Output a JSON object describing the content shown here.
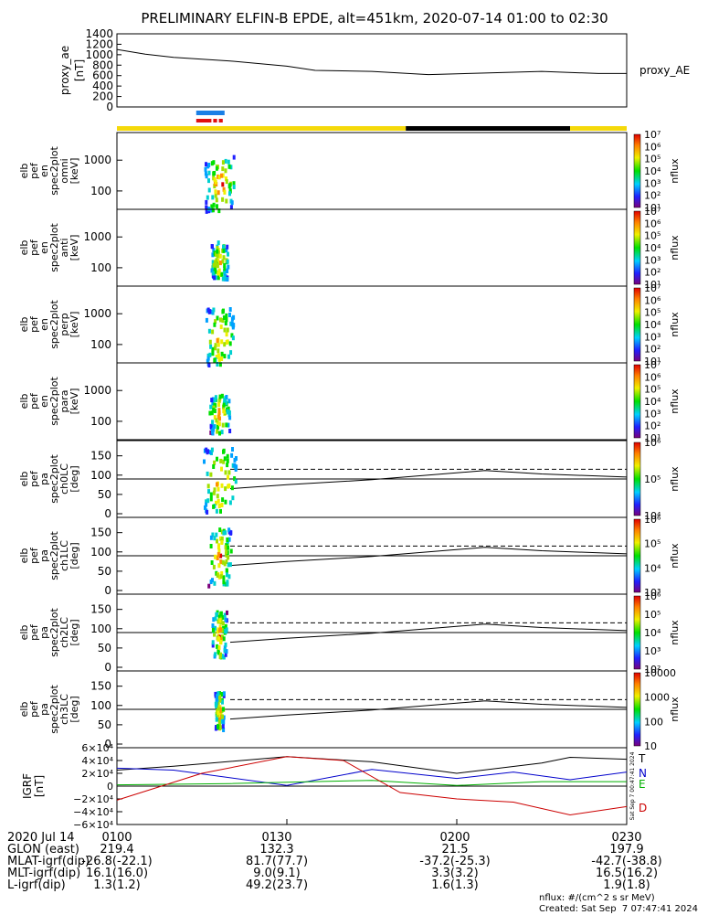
{
  "chart_data": {
    "type": "multi-panel spectrogram",
    "title": "PRELIMINARY ELFIN-B EPDE, alt=451km, 2020-07-14 01:00 to 02:30",
    "time_axis": {
      "start": "2020-07-14 01:00",
      "end": "2020-07-14 02:30",
      "ticks": [
        "0100",
        "0130",
        "0200",
        "0230"
      ]
    },
    "ae_panel": {
      "ylabel": [
        "proxy_ae",
        "[nT]"
      ],
      "yticks": [
        0,
        200,
        400,
        600,
        800,
        1000,
        1200,
        1400
      ],
      "ylim": [
        0,
        1400
      ],
      "legend": "proxy_AE",
      "series": [
        {
          "t": "01:00",
          "v": 1100
        },
        {
          "t": "01:05",
          "v": 1010
        },
        {
          "t": "01:10",
          "v": 950
        },
        {
          "t": "01:20",
          "v": 880
        },
        {
          "t": "01:30",
          "v": 780
        },
        {
          "t": "01:35",
          "v": 700
        },
        {
          "t": "01:45",
          "v": 680
        },
        {
          "t": "01:55",
          "v": 620
        },
        {
          "t": "02:05",
          "v": 650
        },
        {
          "t": "02:15",
          "v": 680
        },
        {
          "t": "02:25",
          "v": 640
        },
        {
          "t": "02:30",
          "v": 640
        }
      ]
    },
    "science_intervals": {
      "blue": [
        {
          "start": "01:14",
          "end": "01:19"
        }
      ],
      "red": [
        {
          "start": "01:14",
          "end": "01:17"
        },
        {
          "start": "01:17",
          "end": "01:18"
        },
        {
          "start": "01:18",
          "end": "01:19"
        }
      ]
    },
    "orbit_bar": [
      {
        "start": "01:00",
        "end": "01:51",
        "color": "#f5d90a"
      },
      {
        "start": "01:51",
        "end": "02:20",
        "color": "#000000"
      },
      {
        "start": "02:20",
        "end": "02:30",
        "color": "#f5d90a"
      }
    ],
    "energy_panels": [
      {
        "ylabel": [
          "elb",
          "pef",
          "en",
          "spec2plot",
          "omni",
          "[keV]"
        ],
        "yticks": [
          100,
          1000
        ],
        "cbar_ticks": [
          "10¹",
          "10²",
          "10³",
          "10⁴",
          "10⁵",
          "10⁶",
          "10⁷"
        ],
        "cbar_label": "nflux"
      },
      {
        "ylabel": [
          "elb",
          "pef",
          "en",
          "spec2plot",
          "anti",
          "[keV]"
        ],
        "yticks": [
          100,
          1000
        ],
        "cbar_ticks": [
          "10¹",
          "10²",
          "10³",
          "10⁴",
          "10⁵",
          "10⁶",
          "10⁷"
        ],
        "cbar_label": "nflux"
      },
      {
        "ylabel": [
          "elb",
          "pef",
          "en",
          "spec2plot",
          "perp",
          "[keV]"
        ],
        "yticks": [
          100,
          1000
        ],
        "cbar_ticks": [
          "10¹",
          "10²",
          "10³",
          "10⁴",
          "10⁵",
          "10⁶",
          "10⁷"
        ],
        "cbar_label": "nflux"
      },
      {
        "ylabel": [
          "elb",
          "pef",
          "en",
          "spec2plot",
          "para",
          "[keV]"
        ],
        "yticks": [
          100,
          1000
        ],
        "cbar_ticks": [
          "10¹",
          "10²",
          "10³",
          "10⁴",
          "10⁵",
          "10⁶",
          "10⁷"
        ],
        "cbar_label": "nflux"
      }
    ],
    "pitch_panels": [
      {
        "ylabel": [
          "elb",
          "pef",
          "pa",
          "spec2plot",
          "ch0LC",
          "[deg]"
        ],
        "yticks": [
          0,
          50,
          100,
          150
        ],
        "cbar_ticks": [
          "10⁴",
          "10⁵",
          "10⁶"
        ],
        "cbar_label": "nflux"
      },
      {
        "ylabel": [
          "elb",
          "pef",
          "pa",
          "spec2plot",
          "ch1LC",
          "[deg]"
        ],
        "yticks": [
          0,
          50,
          100,
          150
        ],
        "cbar_ticks": [
          "10³",
          "10⁴",
          "10⁵",
          "10⁶"
        ],
        "cbar_label": "nflux"
      },
      {
        "ylabel": [
          "elb",
          "pef",
          "pa",
          "spec2plot",
          "ch2LC",
          "[deg]"
        ],
        "yticks": [
          0,
          50,
          100,
          150
        ],
        "cbar_ticks": [
          "10²",
          "10³",
          "10⁴",
          "10⁵",
          "10⁶"
        ],
        "cbar_label": "nflux"
      },
      {
        "ylabel": [
          "elb",
          "pef",
          "pa",
          "spec2plot",
          "ch3LC",
          "[deg]"
        ],
        "yticks": [
          0,
          50,
          100,
          150
        ],
        "cbar_ticks": [
          "10",
          "100",
          "1000",
          "10000"
        ],
        "cbar_label": "nflux"
      }
    ],
    "loss_cone": [
      {
        "t": "01:20",
        "solid": 65,
        "dashed": 115
      },
      {
        "t": "01:30",
        "solid": 75,
        "dashed": 115
      },
      {
        "t": "01:45",
        "solid": 88,
        "dashed": 115
      },
      {
        "t": "02:05",
        "solid": 112,
        "dashed": 115
      },
      {
        "t": "02:15",
        "solid": 103,
        "dashed": 115
      },
      {
        "t": "02:30",
        "solid": 95,
        "dashed": 115
      }
    ],
    "igrf_panel": {
      "ylabel": [
        "IGRF",
        "[nT]"
      ],
      "yticks": [
        "6×10⁴",
        "4×10⁴",
        "2×10⁴",
        "0",
        "−2×10⁴",
        "−4×10⁴",
        "−6×10⁴"
      ],
      "ylim": [
        -60000,
        60000
      ],
      "components": [
        {
          "name": "T",
          "color": "#000000",
          "values": [
            [
              0,
              25000
            ],
            [
              10,
              31000
            ],
            [
              30,
              46000
            ],
            [
              45,
              38000
            ],
            [
              60,
              20000
            ],
            [
              75,
              36000
            ],
            [
              80,
              45000
            ],
            [
              90,
              42000
            ]
          ]
        },
        {
          "name": "N",
          "color": "#0000cc",
          "values": [
            [
              0,
              28000
            ],
            [
              10,
              25000
            ],
            [
              30,
              1000
            ],
            [
              45,
              26000
            ],
            [
              60,
              12000
            ],
            [
              70,
              22000
            ],
            [
              80,
              10000
            ],
            [
              90,
              22000
            ]
          ]
        },
        {
          "name": "E",
          "color": "#00b000",
          "values": [
            [
              0,
              2000
            ],
            [
              20,
              4000
            ],
            [
              45,
              9000
            ],
            [
              60,
              1000
            ],
            [
              75,
              7000
            ],
            [
              90,
              7000
            ]
          ]
        },
        {
          "name": "D",
          "color": "#cc0000",
          "values": [
            [
              0,
              -22000
            ],
            [
              15,
              20000
            ],
            [
              30,
              46000
            ],
            [
              40,
              40000
            ],
            [
              50,
              -10000
            ],
            [
              60,
              -20000
            ],
            [
              70,
              -25000
            ],
            [
              80,
              -45000
            ],
            [
              90,
              -32000
            ]
          ]
        }
      ],
      "side_text": "Sat Sep 7 00:47:41 2024"
    },
    "ephemeris": {
      "header": [
        "2020 Jul 14",
        "0100",
        "0130",
        "0200",
        "0230"
      ],
      "rows": [
        {
          "label": "GLON (east)",
          "values": [
            "219.4",
            "132.3",
            "21.5",
            "197.9"
          ]
        },
        {
          "label": "MLAT-igrf(dip)",
          "values": [
            "-26.8(-22.1)",
            "81.7(77.7)",
            "-37.2(-25.3)",
            "-42.7(-38.8)"
          ]
        },
        {
          "label": "MLT-igrf(dip)",
          "values": [
            "16.1(16.0)",
            "9.0(9.1)",
            "3.3(3.2)",
            "16.5(16.2)"
          ]
        },
        {
          "label": "L-igrf(dip)",
          "values": [
            "1.3(1.2)",
            "49.2(23.7)",
            "1.6(1.3)",
            "1.9(1.8)"
          ]
        }
      ]
    },
    "units_note": "nflux: #/(cm^2 s sr MeV)",
    "created": "Created: Sat Sep  7 07:47:41 2024"
  }
}
